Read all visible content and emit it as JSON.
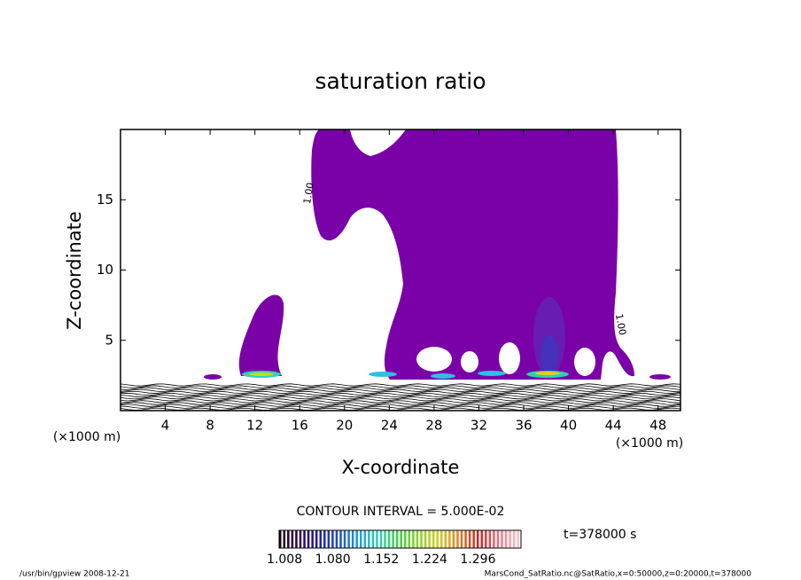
{
  "chart_data": {
    "type": "contour",
    "title": "saturation ratio",
    "x_label": "X-coordinate",
    "y_label": "Z-coordinate",
    "x_unit": "(×1000 m)",
    "y_unit": "(×1000 m)",
    "xlim": [
      0,
      50
    ],
    "ylim": [
      0,
      20
    ],
    "xticks": [
      4,
      8,
      12,
      16,
      20,
      24,
      28,
      32,
      36,
      40,
      44,
      48
    ],
    "yticks": [
      5,
      10,
      15
    ],
    "fill_color": "#7a00a8",
    "contour_labels": [
      {
        "value": 1,
        "label": "1.00"
      },
      {
        "value": 1,
        "label": "1.00"
      }
    ],
    "contour_interval": "CONTOUR INTERVAL = 5.000E-02",
    "colorbar": {
      "lim": [
        1.0,
        1.36
      ],
      "ticks": [
        1.008,
        {
          "value": 1.08,
          "label": "1.080"
        },
        1.152,
        1.224,
        1.296
      ],
      "colors": [
        "#1a0010",
        "#300060",
        "#2020a0",
        "#2050d0",
        "#20a0e0",
        "#30d0b0",
        "#40d040",
        "#90d020",
        "#d0d020",
        "#e08020",
        "#d02020",
        "#f07080",
        "#ffc0c0"
      ]
    },
    "time_label": "t=378000 s",
    "footer_left": "/usr/bin/gpview   2008-12-21",
    "footer_right": "MarsCond_SatRatio.nc@SatRatio,x=0:50000,z=0:20000,t=378000"
  }
}
